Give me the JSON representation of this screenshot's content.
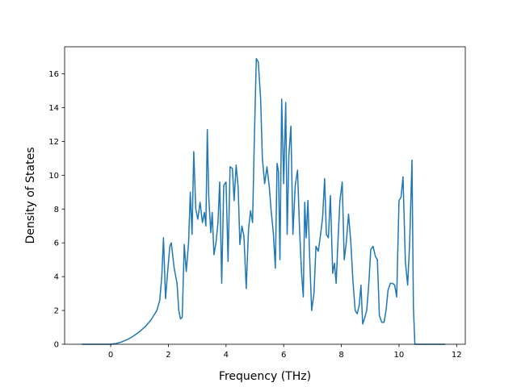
{
  "colors": {
    "line": "#1f77b4",
    "axes": "#000000",
    "background": "#ffffff"
  },
  "chart_data": {
    "type": "line",
    "title": "",
    "xlabel": "Frequency (THz)",
    "ylabel": "Density of States",
    "xlim": [
      -1.6,
      12.3
    ],
    "ylim": [
      0,
      17.6
    ],
    "grid": false,
    "legend": "none",
    "x_ticks": [
      0,
      2,
      4,
      6,
      8,
      10,
      12
    ],
    "y_ticks": [
      0,
      2,
      4,
      6,
      8,
      10,
      12,
      14,
      16
    ],
    "x_tick_labels": [
      "0",
      "2",
      "4",
      "6",
      "8",
      "10",
      "12"
    ],
    "y_tick_labels": [
      "0",
      "2",
      "4",
      "6",
      "8",
      "10",
      "12",
      "14",
      "16"
    ],
    "series": [
      {
        "x": [
          -1.0,
          0.0,
          0.2,
          0.4,
          0.6,
          0.8,
          1.0,
          1.2,
          1.4,
          1.6,
          1.7,
          1.77,
          1.83,
          1.9,
          1.97,
          2.05,
          2.1,
          2.2,
          2.3,
          2.36,
          2.42,
          2.48,
          2.55,
          2.62,
          2.7,
          2.76,
          2.82,
          2.88,
          2.95,
          3.02,
          3.1,
          3.18,
          3.25,
          3.3,
          3.35,
          3.4,
          3.47,
          3.52,
          3.58,
          3.65,
          3.72,
          3.78,
          3.85,
          3.92,
          4.0,
          4.07,
          4.14,
          4.22,
          4.28,
          4.35,
          4.42,
          4.48,
          4.55,
          4.62,
          4.7,
          4.78,
          4.85,
          4.92,
          4.98,
          5.05,
          5.12,
          5.2,
          5.26,
          5.34,
          5.42,
          5.5,
          5.57,
          5.64,
          5.71,
          5.77,
          5.82,
          5.87,
          5.93,
          6.0,
          6.07,
          6.12,
          6.18,
          6.25,
          6.32,
          6.4,
          6.48,
          6.55,
          6.62,
          6.68,
          6.73,
          6.78,
          6.84,
          6.9,
          6.97,
          7.05,
          7.12,
          7.2,
          7.28,
          7.35,
          7.42,
          7.48,
          7.55,
          7.62,
          7.7,
          7.76,
          7.82,
          7.88,
          7.95,
          8.03,
          8.1,
          8.17,
          8.25,
          8.33,
          8.4,
          8.48,
          8.55,
          8.62,
          8.68,
          8.74,
          8.8,
          8.88,
          8.95,
          9.02,
          9.1,
          9.18,
          9.25,
          9.32,
          9.4,
          9.48,
          9.55,
          9.62,
          9.7,
          9.78,
          9.85,
          9.92,
          10.0,
          10.07,
          10.14,
          10.22,
          10.3,
          10.37,
          10.45,
          10.5,
          10.55,
          10.6,
          11.6
        ],
        "y": [
          0,
          0,
          0.05,
          0.15,
          0.3,
          0.5,
          0.75,
          1.05,
          1.45,
          2.0,
          2.6,
          4.0,
          6.3,
          2.7,
          4.2,
          5.8,
          6.0,
          4.5,
          3.6,
          2.0,
          1.5,
          1.6,
          5.9,
          4.3,
          6.0,
          9.0,
          6.5,
          11.4,
          8.0,
          7.4,
          8.4,
          7.2,
          7.8,
          7.0,
          12.7,
          8.7,
          6.6,
          7.8,
          5.3,
          6.0,
          7.2,
          9.6,
          3.6,
          9.4,
          9.6,
          4.9,
          10.5,
          10.4,
          8.5,
          10.6,
          9.3,
          5.9,
          7.0,
          6.4,
          3.3,
          6.8,
          7.9,
          7.2,
          12.0,
          16.9,
          16.7,
          14.5,
          11.0,
          9.5,
          10.5,
          9.3,
          7.8,
          6.6,
          4.5,
          10.7,
          10.2,
          5.0,
          14.5,
          9.5,
          14.3,
          6.5,
          11.2,
          12.9,
          6.5,
          9.4,
          10.3,
          6.8,
          4.2,
          2.8,
          8.4,
          6.3,
          8.5,
          5.2,
          2.0,
          3.0,
          5.8,
          5.5,
          6.5,
          7.5,
          9.8,
          6.5,
          6.3,
          8.8,
          4.2,
          4.8,
          3.6,
          6.0,
          8.5,
          9.6,
          5.0,
          6.0,
          7.7,
          6.0,
          3.8,
          2.0,
          1.8,
          2.3,
          3.5,
          1.2,
          1.5,
          2.0,
          3.5,
          5.6,
          5.8,
          5.2,
          5.0,
          1.7,
          1.3,
          1.3,
          2.0,
          3.2,
          3.6,
          3.6,
          3.5,
          2.8,
          8.5,
          8.7,
          9.9,
          4.9,
          3.5,
          6.0,
          10.9,
          2.2,
          0,
          0,
          0
        ]
      }
    ]
  }
}
